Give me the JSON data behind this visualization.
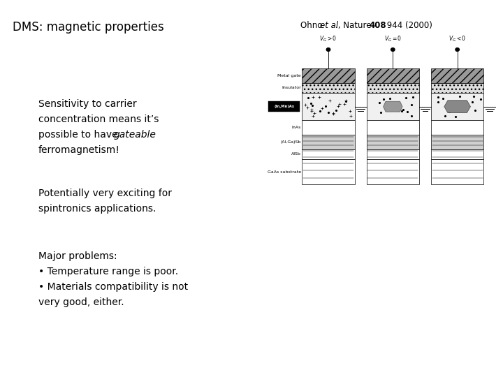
{
  "title": "DMS: magnetic properties",
  "citation_fontsize": 8.5,
  "title_fontsize": 12,
  "body_fontsize": 10,
  "label_fontsize": 4.5,
  "background_color": "#ffffff",
  "text_color": "#000000",
  "bullet1_line1": "Sensitivity to carrier",
  "bullet1_line2": "concentration means it’s",
  "bullet1_line3": "possible to have ",
  "bullet1_italic": "gateable",
  "bullet1_line4": "ferromagnetism!",
  "bullet2_line1": "Potentially very exciting for",
  "bullet2_line2": "spintronics applications.",
  "bullet3_header": "Major problems:",
  "bullet3_item1": "• Temperature range is poor.",
  "bullet3_item2": "• Materials compatibility is not",
  "bullet3_item3": "very good, either."
}
